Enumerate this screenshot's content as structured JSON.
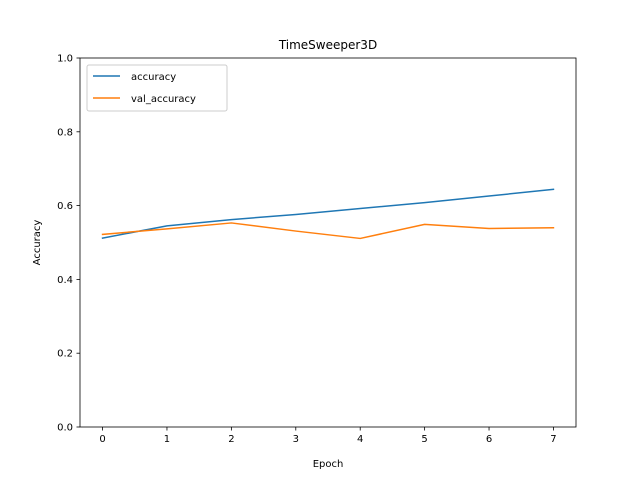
{
  "chart_data": {
    "type": "line",
    "title": "TimeSweeper3D",
    "xlabel": "Epoch",
    "ylabel": "Accuracy",
    "x": [
      0,
      1,
      2,
      3,
      4,
      5,
      6,
      7
    ],
    "xticks": [
      "0",
      "1",
      "2",
      "3",
      "4",
      "5",
      "6",
      "7"
    ],
    "xlim": [
      -0.35,
      7.35
    ],
    "ylim": [
      0.0,
      1.0
    ],
    "yticks": [
      "0.0",
      "0.2",
      "0.4",
      "0.6",
      "0.8",
      "1.0"
    ],
    "grid": false,
    "legend_position": "top-left",
    "series": [
      {
        "name": "accuracy",
        "color": "#1f77b4",
        "values": [
          0.512,
          0.545,
          0.562,
          0.576,
          0.592,
          0.608,
          0.626,
          0.644
        ]
      },
      {
        "name": "val_accuracy",
        "color": "#ff7f0e",
        "values": [
          0.522,
          0.537,
          0.553,
          0.531,
          0.511,
          0.549,
          0.538,
          0.54
        ]
      }
    ]
  }
}
